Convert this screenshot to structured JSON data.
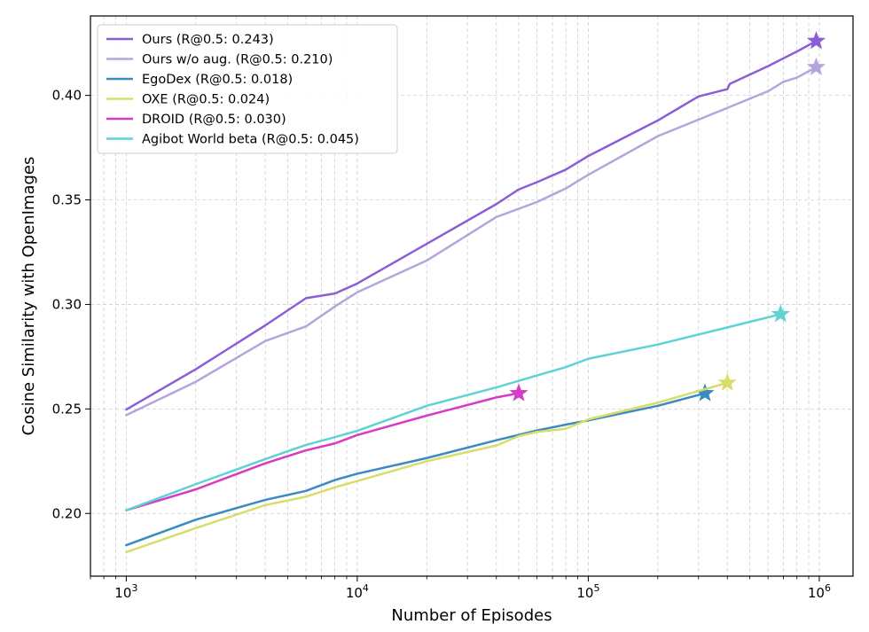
{
  "chart_data": {
    "type": "line",
    "xlabel": "Number of Episodes",
    "ylabel": "Cosine Similarity with OpenImages",
    "xscale": "log",
    "xlim": [
      700,
      1400000
    ],
    "ylim": [
      0.17,
      0.438
    ],
    "grid": true,
    "legend_position": "top-left",
    "x_ticks": [
      {
        "value": 1000,
        "base": "10",
        "exp": "3"
      },
      {
        "value": 10000,
        "base": "10",
        "exp": "4"
      },
      {
        "value": 100000,
        "base": "10",
        "exp": "5"
      },
      {
        "value": 1000000,
        "base": "10",
        "exp": "6"
      }
    ],
    "y_ticks": [
      {
        "value": 0.2,
        "label": "0.20"
      },
      {
        "value": 0.25,
        "label": "0.25"
      },
      {
        "value": 0.3,
        "label": "0.30"
      },
      {
        "value": 0.35,
        "label": "0.35"
      },
      {
        "value": 0.4,
        "label": "0.40"
      }
    ],
    "series": [
      {
        "name": "Ours (R@0.5: 0.243)",
        "color": "#8a5fd6",
        "x": [
          1000,
          2000,
          4000,
          6000,
          8000,
          10000,
          20000,
          40000,
          50000,
          60000,
          80000,
          100000,
          200000,
          300000,
          400000,
          410000,
          600000,
          800000,
          970000
        ],
        "y": [
          0.2497,
          0.269,
          0.29,
          0.303,
          0.3052,
          0.31,
          0.329,
          0.348,
          0.355,
          0.3585,
          0.3645,
          0.371,
          0.388,
          0.3995,
          0.403,
          0.4055,
          0.414,
          0.421,
          0.426
        ]
      },
      {
        "name": "Ours w/o aug. (R@0.5: 0.210)",
        "color": "#b4a5dc",
        "x": [
          1000,
          2000,
          4000,
          6000,
          8000,
          10000,
          20000,
          40000,
          60000,
          80000,
          100000,
          200000,
          400000,
          600000,
          700000,
          800000,
          970000
        ],
        "y": [
          0.247,
          0.263,
          0.2825,
          0.2895,
          0.299,
          0.3058,
          0.321,
          0.3418,
          0.349,
          0.3555,
          0.362,
          0.3805,
          0.394,
          0.402,
          0.4065,
          0.4085,
          0.4135
        ]
      },
      {
        "name": "EgoDex (R@0.5: 0.018)",
        "color": "#3a8bc0",
        "x": [
          1000,
          2000,
          4000,
          6000,
          8000,
          10000,
          20000,
          40000,
          60000,
          80000,
          100000,
          200000,
          320000
        ],
        "y": [
          0.1848,
          0.197,
          0.2065,
          0.2108,
          0.216,
          0.219,
          0.2265,
          0.235,
          0.2397,
          0.2425,
          0.2445,
          0.2515,
          0.2575
        ]
      },
      {
        "name": "OXE (R@0.5: 0.024)",
        "color": "#d8dd6a",
        "x": [
          1000,
          2000,
          4000,
          6000,
          8000,
          10000,
          20000,
          40000,
          50000,
          60000,
          80000,
          100000,
          200000,
          400000
        ],
        "y": [
          0.1815,
          0.193,
          0.204,
          0.208,
          0.2125,
          0.2155,
          0.225,
          0.2325,
          0.237,
          0.239,
          0.2405,
          0.245,
          0.253,
          0.2625
        ]
      },
      {
        "name": "DROID (R@0.5: 0.030)",
        "color": "#d63cc4",
        "x": [
          1000,
          2000,
          4000,
          6000,
          8000,
          10000,
          20000,
          40000,
          50000
        ],
        "y": [
          0.2015,
          0.2115,
          0.224,
          0.2302,
          0.2335,
          0.2375,
          0.2468,
          0.2555,
          0.2575
        ]
      },
      {
        "name": "Agibot World beta (R@0.5: 0.045)",
        "color": "#5fd2d4",
        "x": [
          1000,
          2000,
          4000,
          6000,
          8000,
          10000,
          20000,
          40000,
          60000,
          80000,
          100000,
          200000,
          400000,
          680000
        ],
        "y": [
          0.2015,
          0.214,
          0.226,
          0.2328,
          0.2365,
          0.2395,
          0.2515,
          0.2603,
          0.266,
          0.27,
          0.274,
          0.2808,
          0.289,
          0.2953
        ]
      }
    ]
  }
}
